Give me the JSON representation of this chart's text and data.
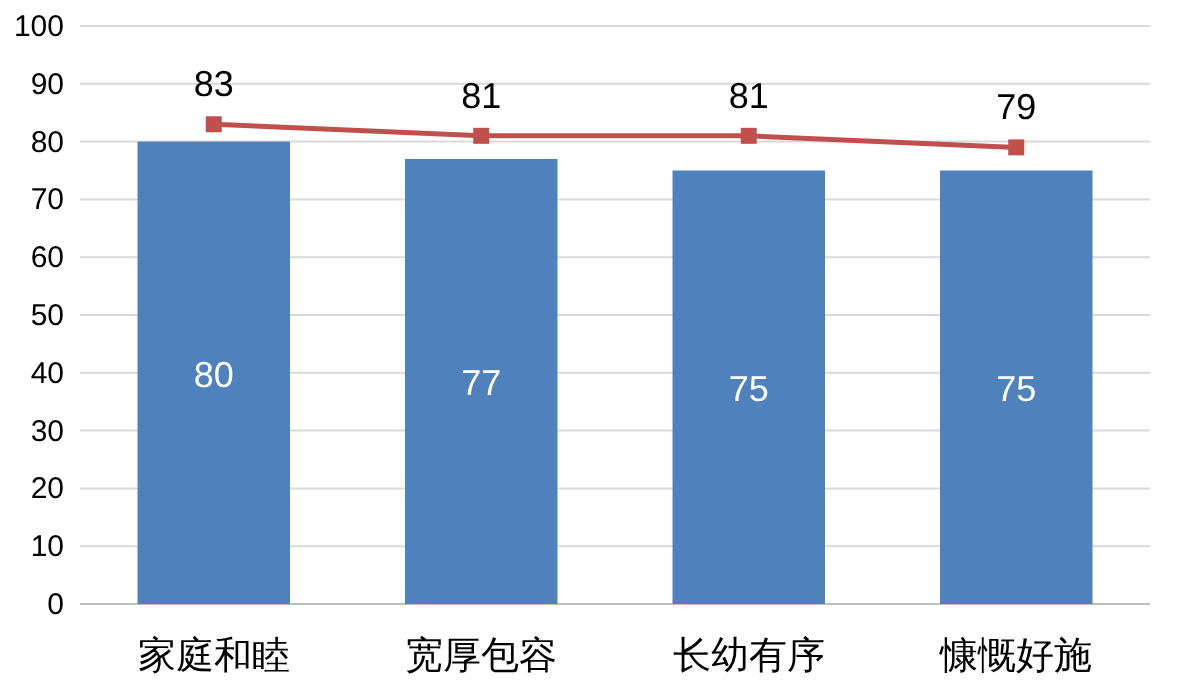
{
  "chart_data": {
    "type": "bar",
    "categories": [
      "家庭和睦",
      "宽厚包容",
      "长幼有序",
      "慷慨好施"
    ],
    "series": [
      {
        "color": "#4f81bd",
        "values": [
          80,
          77,
          75,
          75
        ]
      },
      {
        "type": "line",
        "color": "#c0504d",
        "marker": "square",
        "values": [
          83,
          81,
          81,
          79
        ]
      }
    ],
    "ylim": [
      0,
      100
    ],
    "yticks": [
      0,
      10,
      20,
      30,
      40,
      50,
      60,
      70,
      80,
      90,
      100
    ],
    "grid": "y",
    "data_labels": true
  }
}
